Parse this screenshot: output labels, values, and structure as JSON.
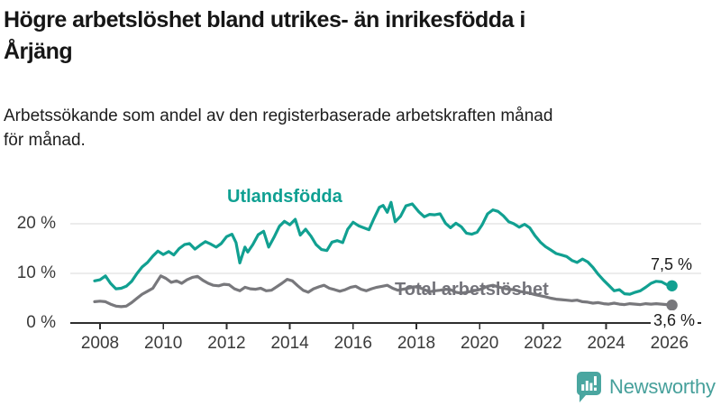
{
  "header": {
    "title_lines": [
      "Högre arbetslöshet bland utrikes- än inrikesfödda i",
      "Årjäng"
    ],
    "subtitle_lines": [
      "Arbetssökande som andel av den registerbaserade arbetskraften månad",
      "för månad."
    ]
  },
  "chart_data": {
    "type": "line",
    "title": "Högre arbetslöshet bland utrikes- än inrikesfödda i Årjäng",
    "subtitle": "Arbetssökande som andel av den registerbaserade arbetskraften månad för månad.",
    "unit": "percent",
    "grid": true,
    "legend_position": "inline-labels",
    "x_axis": {
      "ticks": [
        2008,
        2010,
        2012,
        2014,
        2016,
        2018,
        2020,
        2022,
        2024,
        2026
      ],
      "range": [
        2007.0,
        2027.0
      ]
    },
    "y_axis": {
      "ticks": [
        {
          "value": 0,
          "label": "0 %"
        },
        {
          "value": 10,
          "label": "10 %"
        },
        {
          "value": 20,
          "label": "20 %"
        }
      ],
      "range": [
        0,
        26
      ]
    },
    "series": [
      {
        "name": "Utlandsfödda",
        "color": "#11a091",
        "end_label": "7,5 %",
        "end_value": 7.5,
        "points": [
          [
            2007.83,
            8.5
          ],
          [
            2008.0,
            8.7
          ],
          [
            2008.17,
            9.5
          ],
          [
            2008.33,
            8.0
          ],
          [
            2008.5,
            6.9
          ],
          [
            2008.67,
            7.0
          ],
          [
            2008.83,
            7.4
          ],
          [
            2009.0,
            8.4
          ],
          [
            2009.17,
            10.0
          ],
          [
            2009.33,
            11.3
          ],
          [
            2009.5,
            12.2
          ],
          [
            2009.67,
            13.5
          ],
          [
            2009.83,
            14.5
          ],
          [
            2010.0,
            13.8
          ],
          [
            2010.17,
            14.4
          ],
          [
            2010.33,
            13.7
          ],
          [
            2010.5,
            15.0
          ],
          [
            2010.67,
            15.8
          ],
          [
            2010.83,
            16.0
          ],
          [
            2011.0,
            14.9
          ],
          [
            2011.17,
            15.7
          ],
          [
            2011.33,
            16.4
          ],
          [
            2011.5,
            15.9
          ],
          [
            2011.67,
            15.3
          ],
          [
            2011.83,
            16.0
          ],
          [
            2012.0,
            17.4
          ],
          [
            2012.17,
            17.9
          ],
          [
            2012.3,
            16.2
          ],
          [
            2012.42,
            12.1
          ],
          [
            2012.58,
            15.3
          ],
          [
            2012.67,
            14.3
          ],
          [
            2012.83,
            15.8
          ],
          [
            2013.0,
            17.8
          ],
          [
            2013.17,
            18.5
          ],
          [
            2013.33,
            15.3
          ],
          [
            2013.5,
            17.3
          ],
          [
            2013.67,
            19.5
          ],
          [
            2013.83,
            20.5
          ],
          [
            2014.0,
            19.8
          ],
          [
            2014.17,
            20.9
          ],
          [
            2014.33,
            17.7
          ],
          [
            2014.5,
            18.9
          ],
          [
            2014.67,
            17.5
          ],
          [
            2014.83,
            15.8
          ],
          [
            2015.0,
            14.8
          ],
          [
            2015.17,
            14.6
          ],
          [
            2015.33,
            16.3
          ],
          [
            2015.5,
            16.6
          ],
          [
            2015.67,
            16.2
          ],
          [
            2015.83,
            18.9
          ],
          [
            2016.0,
            20.3
          ],
          [
            2016.17,
            19.6
          ],
          [
            2016.33,
            19.2
          ],
          [
            2016.5,
            18.8
          ],
          [
            2016.67,
            21.2
          ],
          [
            2016.83,
            23.3
          ],
          [
            2016.95,
            23.7
          ],
          [
            2017.08,
            22.3
          ],
          [
            2017.2,
            24.3
          ],
          [
            2017.33,
            20.4
          ],
          [
            2017.5,
            21.5
          ],
          [
            2017.67,
            23.6
          ],
          [
            2017.87,
            24.0
          ],
          [
            2018.08,
            22.4
          ],
          [
            2018.25,
            21.4
          ],
          [
            2018.42,
            21.9
          ],
          [
            2018.58,
            21.8
          ],
          [
            2018.75,
            22.0
          ],
          [
            2018.92,
            20.1
          ],
          [
            2019.08,
            19.2
          ],
          [
            2019.25,
            20.1
          ],
          [
            2019.42,
            19.4
          ],
          [
            2019.58,
            18.1
          ],
          [
            2019.75,
            17.9
          ],
          [
            2019.92,
            18.3
          ],
          [
            2020.08,
            19.8
          ],
          [
            2020.25,
            22.0
          ],
          [
            2020.42,
            22.8
          ],
          [
            2020.58,
            22.5
          ],
          [
            2020.75,
            21.6
          ],
          [
            2020.92,
            20.4
          ],
          [
            2021.08,
            20.0
          ],
          [
            2021.25,
            19.3
          ],
          [
            2021.42,
            19.9
          ],
          [
            2021.58,
            19.2
          ],
          [
            2021.75,
            17.6
          ],
          [
            2021.92,
            16.3
          ],
          [
            2022.08,
            15.4
          ],
          [
            2022.25,
            14.7
          ],
          [
            2022.42,
            14.0
          ],
          [
            2022.58,
            13.7
          ],
          [
            2022.75,
            13.4
          ],
          [
            2022.92,
            12.6
          ],
          [
            2023.08,
            12.2
          ],
          [
            2023.25,
            12.9
          ],
          [
            2023.42,
            12.3
          ],
          [
            2023.58,
            11.2
          ],
          [
            2023.75,
            9.8
          ],
          [
            2023.92,
            8.6
          ],
          [
            2024.08,
            7.6
          ],
          [
            2024.25,
            6.5
          ],
          [
            2024.42,
            6.7
          ],
          [
            2024.58,
            5.9
          ],
          [
            2024.75,
            5.8
          ],
          [
            2024.92,
            6.2
          ],
          [
            2025.08,
            6.5
          ],
          [
            2025.25,
            7.2
          ],
          [
            2025.42,
            8.0
          ],
          [
            2025.58,
            8.4
          ],
          [
            2025.75,
            8.3
          ],
          [
            2025.92,
            7.7
          ],
          [
            2026.08,
            7.5
          ]
        ]
      },
      {
        "name": "Total arbetslöshet",
        "color": "#78787c",
        "end_label": "3,6 %",
        "end_value": 3.6,
        "points": [
          [
            2007.83,
            4.3
          ],
          [
            2008.0,
            4.4
          ],
          [
            2008.17,
            4.3
          ],
          [
            2008.33,
            3.8
          ],
          [
            2008.5,
            3.4
          ],
          [
            2008.67,
            3.3
          ],
          [
            2008.83,
            3.4
          ],
          [
            2009.0,
            4.1
          ],
          [
            2009.17,
            5.0
          ],
          [
            2009.33,
            5.8
          ],
          [
            2009.5,
            6.4
          ],
          [
            2009.67,
            7.0
          ],
          [
            2009.83,
            8.6
          ],
          [
            2009.92,
            9.5
          ],
          [
            2010.08,
            9.0
          ],
          [
            2010.25,
            8.2
          ],
          [
            2010.42,
            8.5
          ],
          [
            2010.58,
            8.0
          ],
          [
            2010.75,
            8.7
          ],
          [
            2010.92,
            9.2
          ],
          [
            2011.08,
            9.4
          ],
          [
            2011.25,
            8.6
          ],
          [
            2011.42,
            8.0
          ],
          [
            2011.58,
            7.6
          ],
          [
            2011.75,
            7.5
          ],
          [
            2011.92,
            7.8
          ],
          [
            2012.08,
            7.7
          ],
          [
            2012.25,
            6.9
          ],
          [
            2012.42,
            6.5
          ],
          [
            2012.58,
            7.2
          ],
          [
            2012.75,
            6.9
          ],
          [
            2012.92,
            6.8
          ],
          [
            2013.08,
            7.0
          ],
          [
            2013.25,
            6.5
          ],
          [
            2013.42,
            6.6
          ],
          [
            2013.58,
            7.3
          ],
          [
            2013.75,
            8.0
          ],
          [
            2013.92,
            8.8
          ],
          [
            2014.08,
            8.5
          ],
          [
            2014.25,
            7.5
          ],
          [
            2014.42,
            6.6
          ],
          [
            2014.58,
            6.2
          ],
          [
            2014.75,
            6.9
          ],
          [
            2014.92,
            7.3
          ],
          [
            2015.08,
            7.6
          ],
          [
            2015.25,
            7.0
          ],
          [
            2015.42,
            6.7
          ],
          [
            2015.58,
            6.4
          ],
          [
            2015.75,
            6.7
          ],
          [
            2015.92,
            7.2
          ],
          [
            2016.08,
            7.4
          ],
          [
            2016.25,
            6.8
          ],
          [
            2016.42,
            6.5
          ],
          [
            2016.58,
            6.9
          ],
          [
            2016.75,
            7.2
          ],
          [
            2016.92,
            7.4
          ],
          [
            2017.08,
            7.6
          ],
          [
            2017.25,
            7.0
          ],
          [
            2017.42,
            6.6
          ],
          [
            2017.58,
            6.8
          ],
          [
            2017.75,
            7.0
          ],
          [
            2017.92,
            7.3
          ],
          [
            2018.08,
            7.2
          ],
          [
            2018.25,
            6.7
          ],
          [
            2018.42,
            6.3
          ],
          [
            2018.58,
            6.5
          ],
          [
            2018.75,
            6.6
          ],
          [
            2018.92,
            6.8
          ],
          [
            2019.08,
            6.7
          ],
          [
            2019.25,
            6.2
          ],
          [
            2019.42,
            6.0
          ],
          [
            2019.58,
            6.2
          ],
          [
            2019.75,
            6.4
          ],
          [
            2019.92,
            6.6
          ],
          [
            2020.08,
            6.9
          ],
          [
            2020.25,
            7.4
          ],
          [
            2020.42,
            7.6
          ],
          [
            2020.58,
            7.3
          ],
          [
            2020.75,
            7.0
          ],
          [
            2020.92,
            6.8
          ],
          [
            2021.08,
            6.7
          ],
          [
            2021.25,
            6.4
          ],
          [
            2021.42,
            6.2
          ],
          [
            2021.58,
            6.0
          ],
          [
            2021.75,
            5.7
          ],
          [
            2021.92,
            5.5
          ],
          [
            2022.08,
            5.3
          ],
          [
            2022.25,
            5.0
          ],
          [
            2022.42,
            4.8
          ],
          [
            2022.58,
            4.7
          ],
          [
            2022.75,
            4.6
          ],
          [
            2022.92,
            4.5
          ],
          [
            2023.08,
            4.6
          ],
          [
            2023.25,
            4.3
          ],
          [
            2023.42,
            4.2
          ],
          [
            2023.58,
            4.0
          ],
          [
            2023.75,
            4.1
          ],
          [
            2023.92,
            3.9
          ],
          [
            2024.08,
            3.8
          ],
          [
            2024.25,
            4.0
          ],
          [
            2024.42,
            3.8
          ],
          [
            2024.58,
            3.7
          ],
          [
            2024.75,
            3.9
          ],
          [
            2024.92,
            3.8
          ],
          [
            2025.08,
            3.7
          ],
          [
            2025.25,
            3.9
          ],
          [
            2025.42,
            3.8
          ],
          [
            2025.58,
            3.9
          ],
          [
            2025.75,
            3.8
          ],
          [
            2025.92,
            3.7
          ],
          [
            2026.08,
            3.6
          ]
        ]
      }
    ]
  },
  "footer": {
    "brand": "Newsworthy"
  },
  "colors": {
    "accent_teal": "#11a091",
    "line_gray": "#78787c",
    "logo_teal": "#4aa6a0",
    "grid": "#d9d9d9",
    "axis": "#2e2e2e",
    "text": "#1a1a1a"
  }
}
